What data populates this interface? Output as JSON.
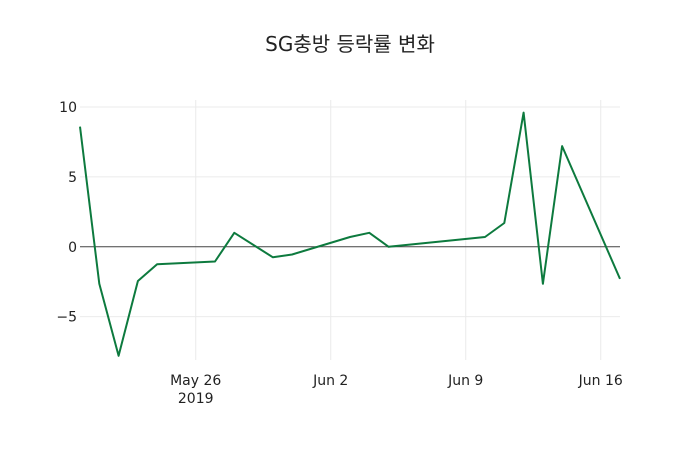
{
  "chart_data": {
    "type": "line",
    "title": "SG충방 등락률 변화",
    "xlabel": "",
    "ylabel": "",
    "x": [
      "2019-05-20",
      "2019-05-21",
      "2019-05-22",
      "2019-05-23",
      "2019-05-24",
      "2019-05-27",
      "2019-05-28",
      "2019-05-30",
      "2019-05-31",
      "2019-06-03",
      "2019-06-04",
      "2019-06-05",
      "2019-06-10",
      "2019-06-11",
      "2019-06-12",
      "2019-06-13",
      "2019-06-14",
      "2019-06-17"
    ],
    "series": [
      {
        "name": "등락률",
        "color": "#0d7a3e",
        "values": [
          8.6,
          -2.65,
          -7.8,
          -2.45,
          -1.25,
          -1.05,
          1.0,
          -0.75,
          -0.55,
          0.7,
          1.0,
          0.0,
          0.7,
          1.7,
          9.6,
          -2.65,
          7.2,
          -2.3
        ]
      }
    ],
    "x_ticks": [
      {
        "date": "2019-05-26",
        "label": "May 26",
        "sublabel": "2019"
      },
      {
        "date": "2019-06-02",
        "label": "Jun 2",
        "sublabel": ""
      },
      {
        "date": "2019-06-09",
        "label": "Jun 9",
        "sublabel": ""
      },
      {
        "date": "2019-06-16",
        "label": "Jun 16",
        "sublabel": ""
      }
    ],
    "y_ticks": [
      10,
      5,
      0,
      -5
    ],
    "y_tick_labels": [
      "10",
      "5",
      "0",
      "−5"
    ],
    "ylim": [
      -8.1,
      10.5
    ],
    "xlim": [
      "2019-05-20",
      "2019-06-17"
    ],
    "grid": true,
    "zero_line": true,
    "legend": "none"
  }
}
